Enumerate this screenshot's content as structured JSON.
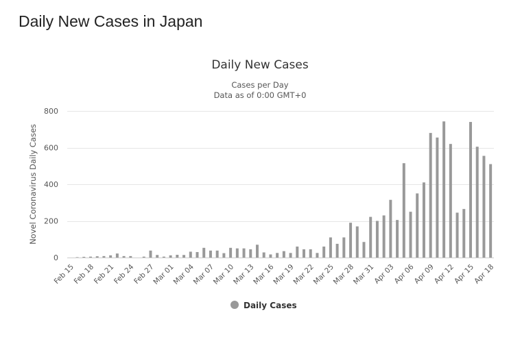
{
  "page": {
    "title": "Daily New Cases in Japan"
  },
  "chart_data": {
    "type": "bar",
    "title": "Daily New Cases",
    "subtitle": [
      "Cases per Day",
      "Data as of 0:00 GMT+0"
    ],
    "xlabel": "",
    "ylabel": "Novel Coronavirus Daily Cases",
    "ylim": [
      0,
      800
    ],
    "yticks": [
      0,
      200,
      400,
      600,
      800
    ],
    "grid": true,
    "legend_position": "bottom-center",
    "color": "#999999",
    "series": [
      {
        "name": "Daily Cases",
        "values": [
          0,
          2,
          4,
          5,
          7,
          8,
          12,
          22,
          8,
          8,
          0,
          5,
          38,
          14,
          5,
          12,
          15,
          14,
          32,
          30,
          53,
          38,
          38,
          24,
          53,
          50,
          50,
          45,
          70,
          28,
          17,
          25,
          35,
          25,
          60,
          45,
          45,
          25,
          60,
          110,
          75,
          110,
          190,
          170,
          85,
          222,
          200,
          230,
          315,
          205,
          515,
          250,
          350,
          410,
          680,
          655,
          743,
          620,
          245,
          265,
          740,
          605,
          555,
          510
        ]
      }
    ],
    "categories": [
      "Feb 15",
      "Feb 16",
      "Feb 17",
      "Feb 18",
      "Feb 19",
      "Feb 20",
      "Feb 21",
      "Feb 22",
      "Feb 23",
      "Feb 24",
      "Feb 25",
      "Feb 26",
      "Feb 27",
      "Feb 28",
      "Feb 29",
      "Mar 01",
      "Mar 02",
      "Mar 03",
      "Mar 04",
      "Mar 05",
      "Mar 06",
      "Mar 07",
      "Mar 08",
      "Mar 09",
      "Mar 10",
      "Mar 11",
      "Mar 12",
      "Mar 13",
      "Mar 14",
      "Mar 15",
      "Mar 16",
      "Mar 17",
      "Mar 18",
      "Mar 19",
      "Mar 20",
      "Mar 21",
      "Mar 22",
      "Mar 23",
      "Mar 24",
      "Mar 25",
      "Mar 26",
      "Mar 27",
      "Mar 28",
      "Mar 29",
      "Mar 30",
      "Mar 31",
      "Apr 01",
      "Apr 02",
      "Apr 03",
      "Apr 04",
      "Apr 05",
      "Apr 06",
      "Apr 07",
      "Apr 08",
      "Apr 09",
      "Apr 10",
      "Apr 11",
      "Apr 12",
      "Apr 13",
      "Apr 14",
      "Apr 15",
      "Apr 16",
      "Apr 17",
      "Apr 18"
    ],
    "xtick_labels": [
      "Feb 15",
      "Feb 18",
      "Feb 21",
      "Feb 24",
      "Feb 27",
      "Mar 01",
      "Mar 04",
      "Mar 07",
      "Mar 10",
      "Mar 13",
      "Mar 16",
      "Mar 19",
      "Mar 22",
      "Mar 25",
      "Mar 28",
      "Mar 31",
      "Apr 03",
      "Apr 06",
      "Apr 09",
      "Apr 12",
      "Apr 15",
      "Apr 18"
    ]
  }
}
